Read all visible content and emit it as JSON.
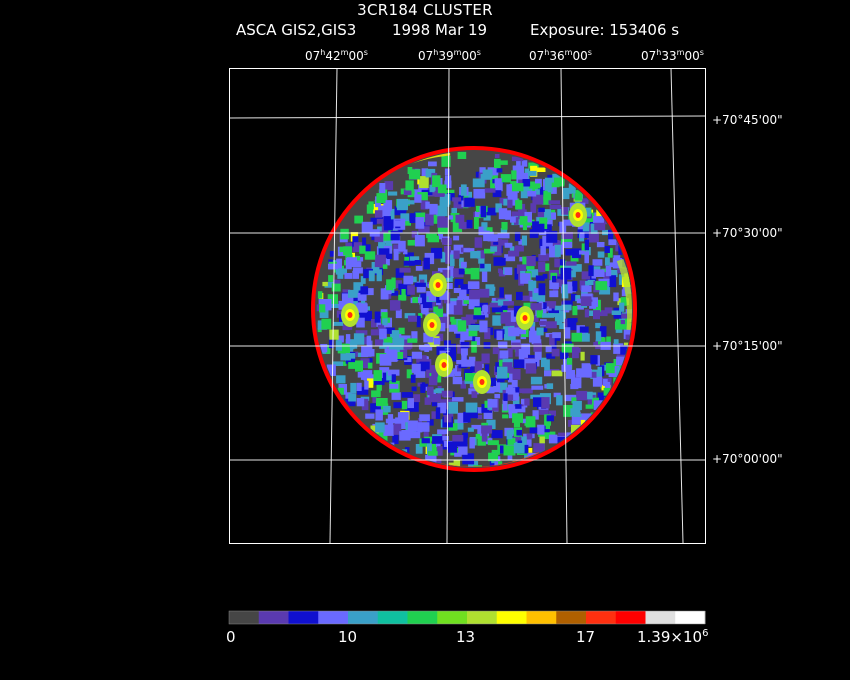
{
  "title": "3CR184 CLUSTER",
  "instrument": "ASCA GIS2,GIS3",
  "date": "1998 Mar 19",
  "exposure": "Exposure: 153406 s",
  "ra_labels": [
    {
      "h": "07",
      "m": "42",
      "s": "00"
    },
    {
      "h": "07",
      "m": "39",
      "s": "00"
    },
    {
      "h": "07",
      "m": "36",
      "s": "00"
    },
    {
      "h": "07",
      "m": "33",
      "s": "00"
    }
  ],
  "dec_labels": [
    {
      "sign": "+",
      "d": "70",
      "m": "45",
      "s": "00"
    },
    {
      "sign": "+",
      "d": "70",
      "m": "30",
      "s": "00"
    },
    {
      "sign": "+",
      "d": "70",
      "m": "15",
      "s": "00"
    },
    {
      "sign": "+",
      "d": "70",
      "m": "00",
      "s": "00"
    }
  ],
  "colorbar": {
    "colors": [
      "#464646",
      "#5a3ab0",
      "#1010d0",
      "#6a6aff",
      "#3aa0c8",
      "#10c0a0",
      "#20d050",
      "#70e020",
      "#b0e030",
      "#ffff00",
      "#ffc000",
      "#b06000",
      "#ff3010",
      "#ff0000",
      "#e0e0e0",
      "#ffffff"
    ],
    "tick_labels": [
      "0",
      "10",
      "13",
      "17"
    ],
    "max_label": {
      "base": "1.39×10",
      "exp": "6"
    }
  },
  "palette": {
    "background": "#000000",
    "grid": "#ffffff",
    "level0": "#464646",
    "level1": "#5a3ab0",
    "level2": "#1010d0",
    "level3": "#6a6aff",
    "level4": "#3aa0c8",
    "level5": "#20d050",
    "level6": "#b0e030",
    "level7": "#ffff00",
    "level8": "#ff3010",
    "rim": "#ff0000"
  }
}
